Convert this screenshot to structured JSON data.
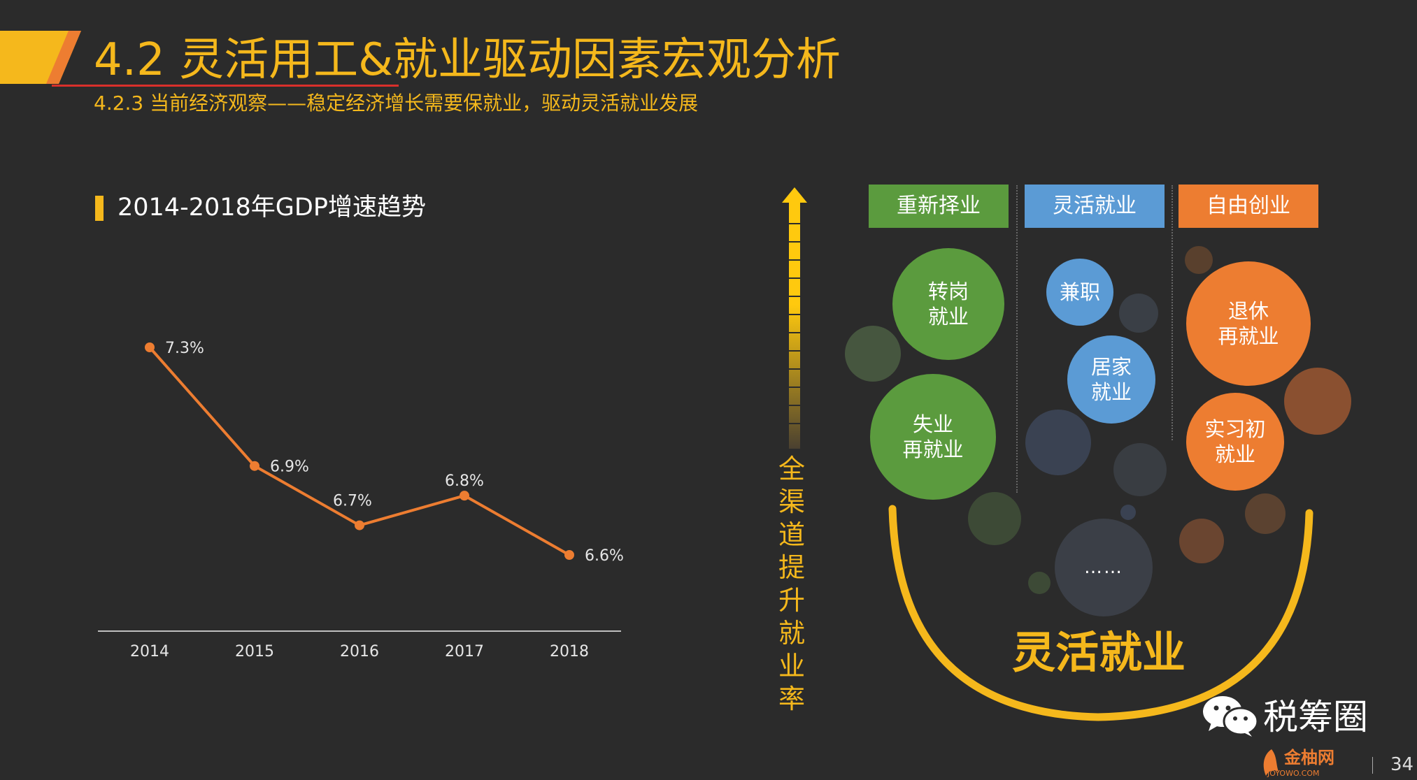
{
  "header": {
    "title": "4.2 灵活用工&就业驱动因素宏观分析",
    "subtitle": "4.2.3 当前经济观察——稳定经济增长需要保就业，驱动灵活就业发展",
    "accent_color": "#f5b81c"
  },
  "chart_data": {
    "type": "line",
    "title": "2014-2018年GDP增速趋势",
    "categories": [
      "2014",
      "2015",
      "2016",
      "2017",
      "2018"
    ],
    "values": [
      7.3,
      6.9,
      6.7,
      6.8,
      6.6
    ],
    "data_labels": [
      "7.3%",
      "6.9%",
      "6.7%",
      "6.8%",
      "6.6%"
    ],
    "grid": false,
    "line_color": "#ed7d31"
  },
  "arrow": {
    "text": "全渠道提升就业率",
    "icon": "up-arrow-icon"
  },
  "categories": [
    {
      "label": "重新择业",
      "color": "#5b9b3e"
    },
    {
      "label": "灵活就业",
      "color": "#5b9bd5"
    },
    {
      "label": "自由创业",
      "color": "#ed7d31"
    }
  ],
  "bubbles": {
    "zhuangang": [
      "转岗",
      "就业"
    ],
    "shiye": [
      "失业",
      "再就业"
    ],
    "jianzhi": [
      "兼职"
    ],
    "jujia": [
      "居家",
      "就业"
    ],
    "tuixiu": [
      "退休",
      "再就业"
    ],
    "shixi": [
      "实习初",
      "就业"
    ],
    "more": "……"
  },
  "bottom_label": "灵活就业",
  "wechat": {
    "name": "税筹圈",
    "icon": "wechat-icon"
  },
  "logo": {
    "text": "金柚网",
    "sub": "JOYOWO.COM"
  },
  "page_number": "34"
}
